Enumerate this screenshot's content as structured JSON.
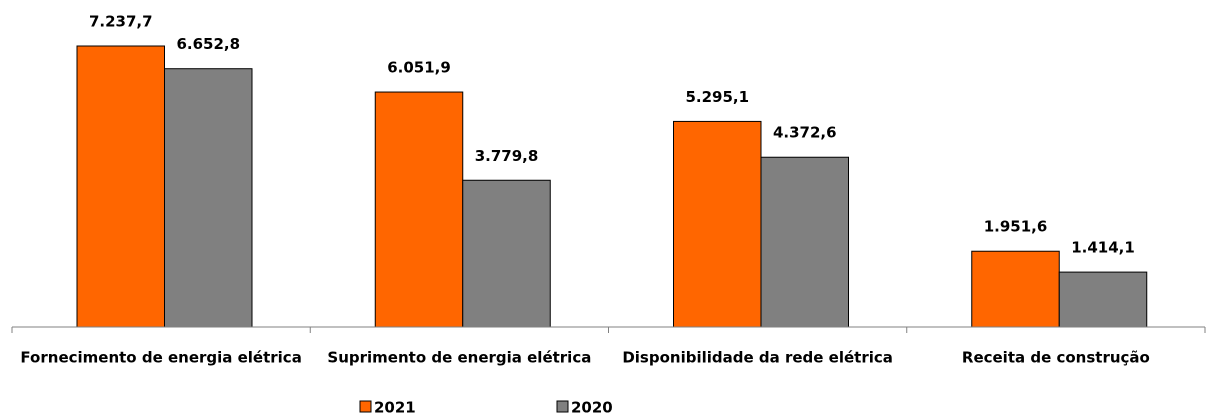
{
  "chart_data": {
    "type": "bar",
    "categories": [
      "Fornecimento de energia elétrica",
      "Suprimento de energia elétrica",
      "Disponibilidade da rede elétrica",
      "Receita de construção"
    ],
    "series": [
      {
        "name": "2021",
        "color": "#ff6600",
        "values": [
          7237.7,
          6051.9,
          5295.1,
          1951.6
        ],
        "value_labels": [
          "7.237,7",
          "6.051,9",
          "5.295,1",
          "1.951,6"
        ]
      },
      {
        "name": "2020",
        "color": "#808080",
        "values": [
          6652.8,
          3779.8,
          4372.6,
          1414.1
        ],
        "value_labels": [
          "6.652,8",
          "3.779,8",
          "4.372,6",
          "1.414,1"
        ]
      }
    ],
    "legend": "bottom"
  }
}
